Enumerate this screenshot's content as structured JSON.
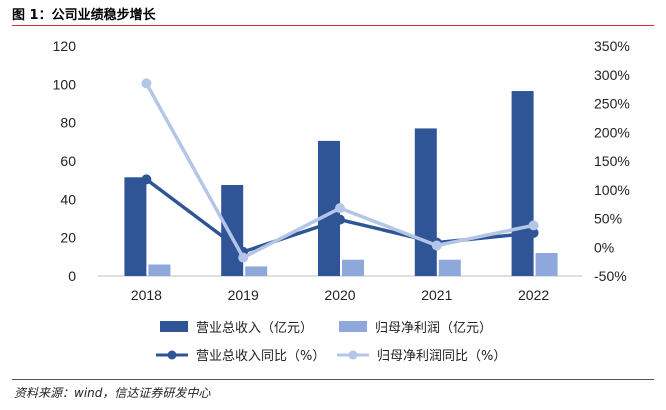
{
  "figure": {
    "title": "图 1：公司业绩稳步增长",
    "source": "资料来源：wind，信达证券研发中心"
  },
  "chart_data": {
    "type": "bar",
    "categories": [
      "2018",
      "2019",
      "2020",
      "2021",
      "2022"
    ],
    "left_axis": {
      "ylim": [
        0,
        120
      ],
      "ticks": [
        "0",
        "20",
        "40",
        "60",
        "80",
        "100",
        "120"
      ]
    },
    "right_axis": {
      "ylim": [
        -50,
        350
      ],
      "ticks": [
        "-50%",
        "0%",
        "50%",
        "100%",
        "150%",
        "200%",
        "250%",
        "300%",
        "350%"
      ]
    },
    "bar_series": [
      {
        "name": "营业总收入（亿元）",
        "axis": "left",
        "color": "#2f5597",
        "values": [
          51.5,
          47.5,
          70.5,
          77,
          96.5
        ]
      },
      {
        "name": "归母净利润（亿元）",
        "axis": "left",
        "color": "#8fa8dc",
        "values": [
          6,
          5,
          8.5,
          8.5,
          12
        ]
      }
    ],
    "line_series": [
      {
        "name": "营业总收入同比（%）",
        "axis": "right",
        "color": "#2f5597",
        "values": [
          118,
          -8,
          48,
          8,
          25
        ]
      },
      {
        "name": "归母净利润同比（%）",
        "axis": "right",
        "color": "#b4c6e7",
        "values": [
          285,
          -18,
          68,
          3,
          38
        ]
      }
    ],
    "legend_position": "bottom",
    "grid": false
  }
}
